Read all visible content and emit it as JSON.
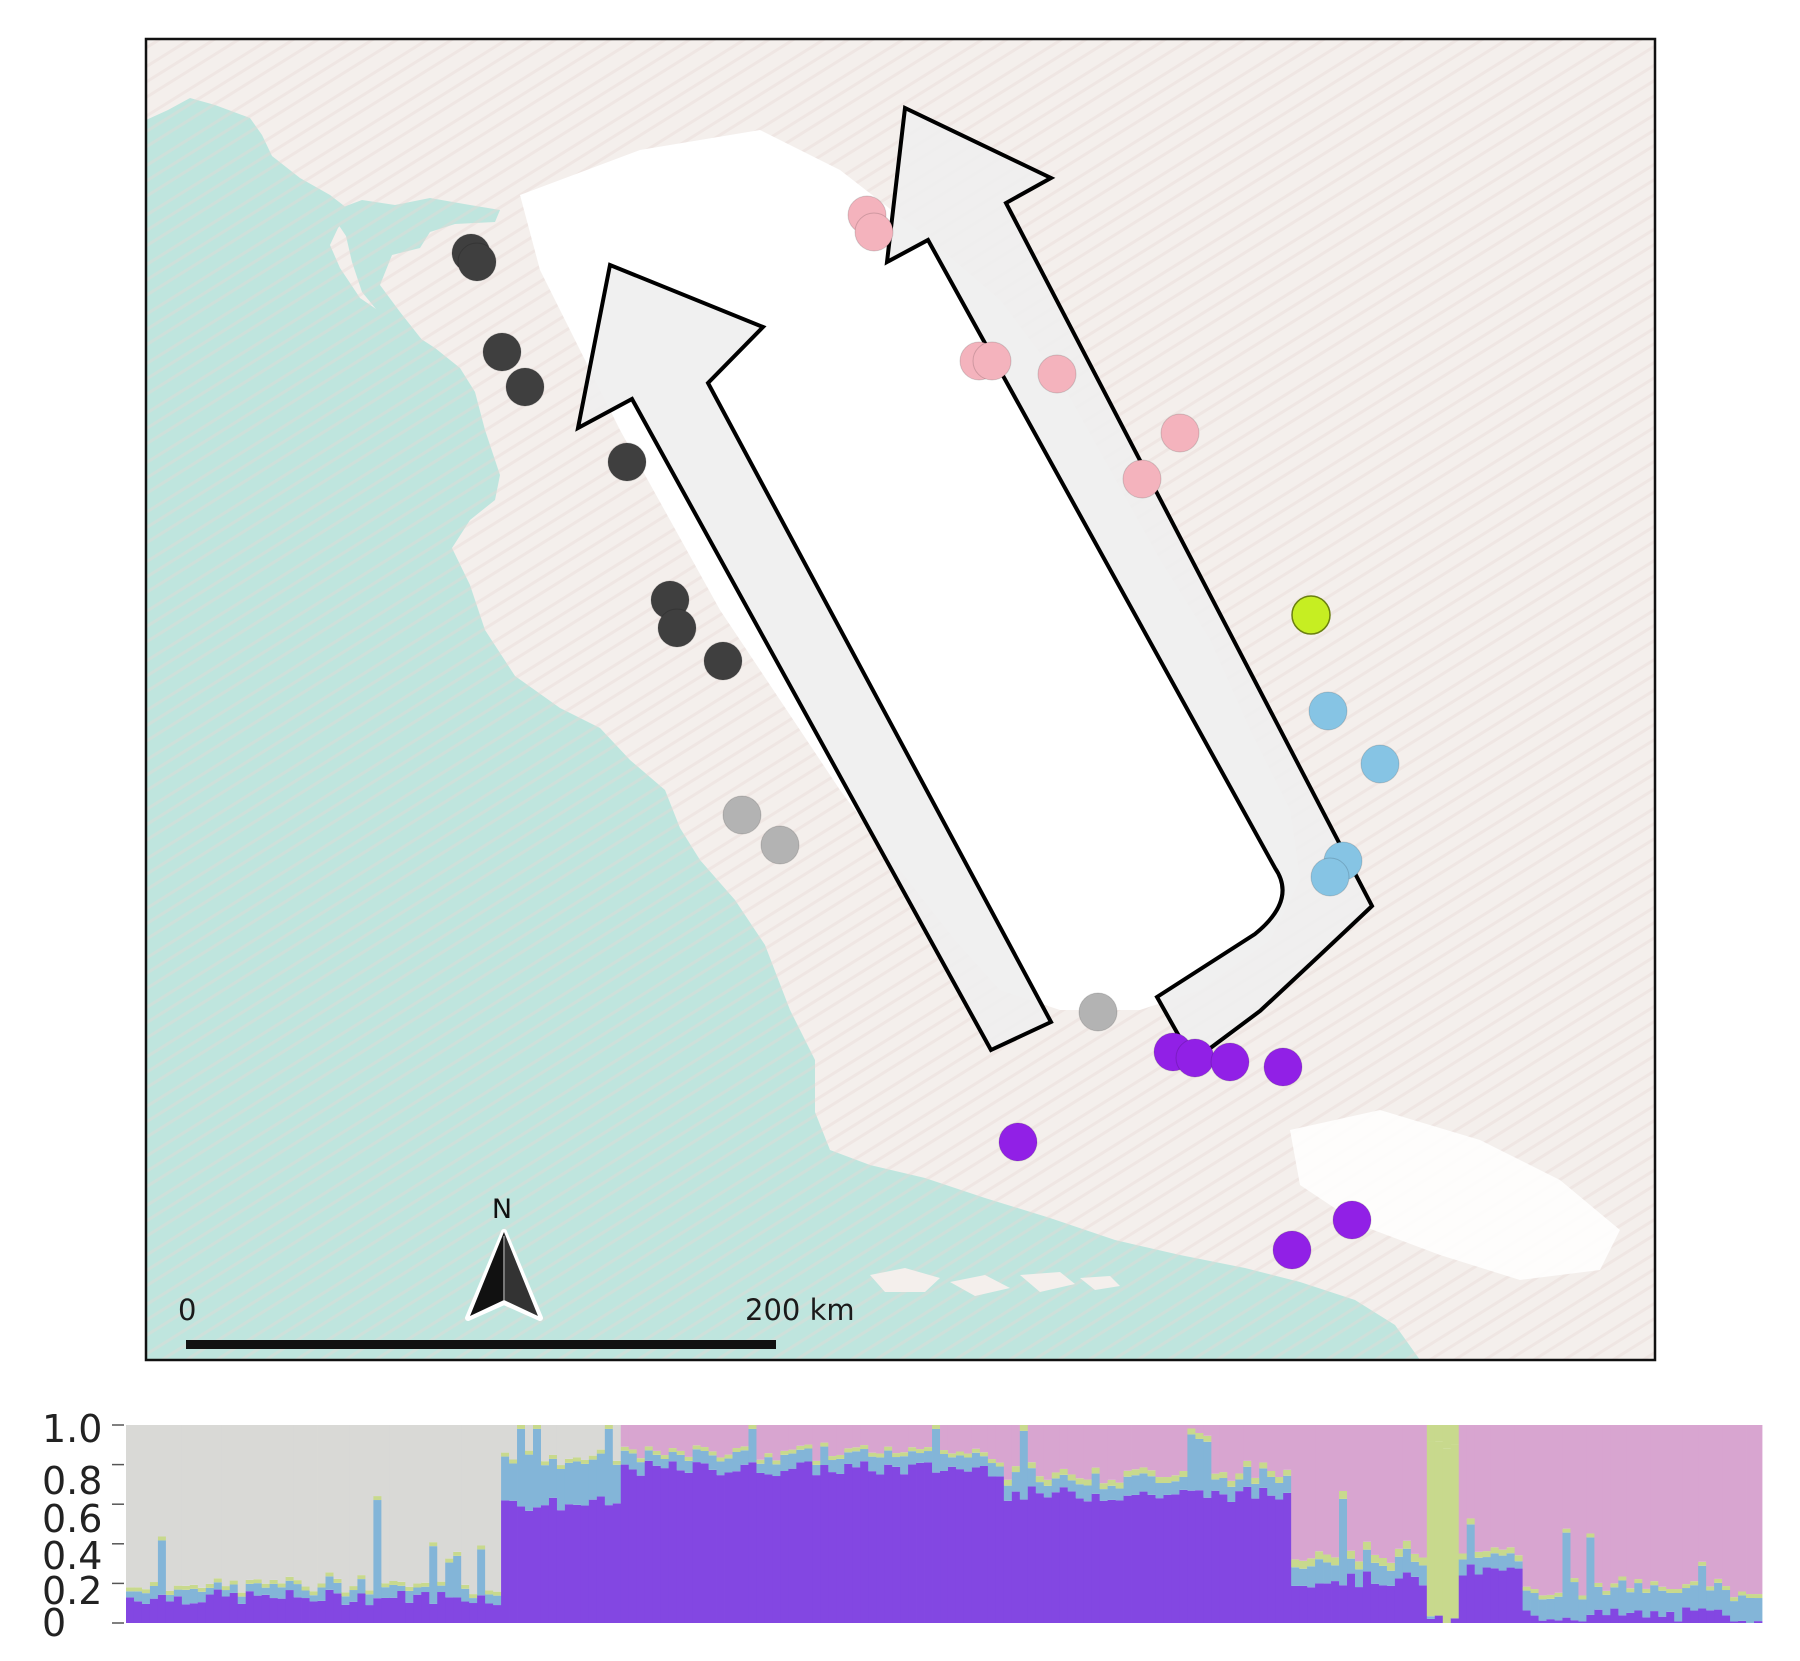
{
  "map": {
    "colors": {
      "ocean": "#bfe5de",
      "land": "#f4efec",
      "valley": "#ffffff",
      "relief": "#e6d9d3",
      "frame": "#111111",
      "arrow_fill": "#efefef",
      "arrow_stroke": "#000000"
    },
    "populations": [
      {
        "group": "dark-gray",
        "color": "#3f3f3f"
      },
      {
        "group": "light-gray",
        "color": "#b3b3b3"
      },
      {
        "group": "pink",
        "color": "#f4b3bd"
      },
      {
        "group": "yellow-green",
        "color": "#c6ee22"
      },
      {
        "group": "light-blue",
        "color": "#86c4e4"
      },
      {
        "group": "purple",
        "color": "#9120e6"
      }
    ],
    "north_arrow": {
      "label": "N",
      "icon": "north-arrow-icon"
    },
    "scale_bar": {
      "start_label": "0",
      "end_label": "200 km"
    }
  },
  "chart_data": {
    "type": "bar",
    "description_kind": "stacked admixture bar plot",
    "y_ticks": [
      "0",
      "0.2",
      "0.4",
      "0.6",
      "0.8",
      "1.0"
    ],
    "ylim": [
      0,
      1
    ],
    "colors": {
      "purple": "#8347e2",
      "blue": "#83b5d8",
      "gray": "#d9d9d6",
      "pink": "#d8a5d0",
      "yellowgreen": "#c8d98d"
    },
    "blocks": [
      {
        "cluster": "gray",
        "n": 47,
        "purple": 0.13,
        "blue": 0.05,
        "yellowgreen": 0.02
      },
      {
        "cluster": "gray",
        "n": 15,
        "purple": 0.6,
        "blue": 0.2,
        "yellowgreen": 0.02
      },
      {
        "cluster": "pink",
        "n": 48,
        "purple": 0.78,
        "blue": 0.07,
        "yellowgreen": 0.02
      },
      {
        "cluster": "pink",
        "n": 36,
        "purple": 0.65,
        "blue": 0.08,
        "yellowgreen": 0.03
      },
      {
        "cluster": "pink",
        "n": 17,
        "purple": 0.22,
        "blue": 0.1,
        "yellowgreen": 0.04
      },
      {
        "cluster": "yellowgreen",
        "n": 4,
        "purple": 0,
        "blue": 0,
        "yellowgreen": 0.88
      },
      {
        "cluster": "pink",
        "n": 8,
        "purple": 0.26,
        "blue": 0.06,
        "yellowgreen": 0.03
      },
      {
        "cluster": "pink",
        "n": 30,
        "purple": 0.04,
        "blue": 0.12,
        "yellowgreen": 0.02
      }
    ]
  }
}
